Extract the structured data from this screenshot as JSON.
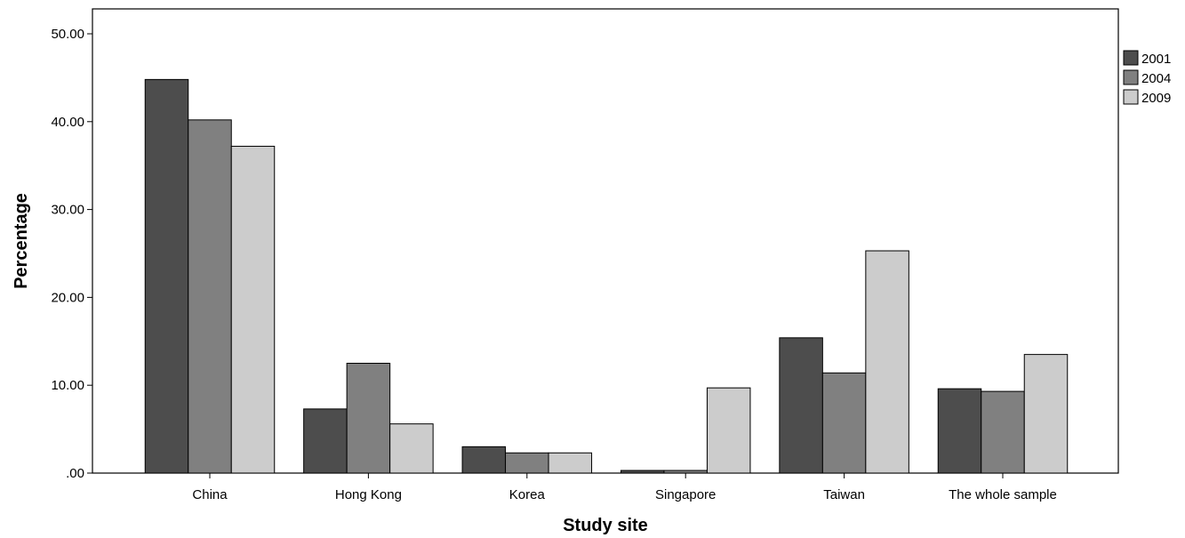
{
  "chart_data": {
    "type": "bar",
    "xlabel": "Study site",
    "ylabel": "Percentage",
    "ylim": [
      0,
      50
    ],
    "yticks": [
      0,
      10,
      20,
      30,
      40,
      50
    ],
    "ytick_labels": [
      ".00",
      "10.00",
      "20.00",
      "30.00",
      "40.00",
      "50.00"
    ],
    "categories": [
      "China",
      "Hong Kong",
      "Korea",
      "Singapore",
      "Taiwan",
      "The whole sample"
    ],
    "series": [
      {
        "name": "2001",
        "color": "#4d4d4d",
        "values": [
          44.8,
          7.3,
          3.0,
          0.3,
          15.4,
          9.6
        ]
      },
      {
        "name": "2004",
        "color": "#808080",
        "values": [
          40.2,
          12.5,
          2.3,
          0.3,
          11.4,
          9.3
        ]
      },
      {
        "name": "2009",
        "color": "#cccccc",
        "values": [
          37.2,
          5.6,
          2.3,
          9.7,
          25.3,
          13.5
        ]
      }
    ],
    "legend_position": "right",
    "grid": false
  }
}
